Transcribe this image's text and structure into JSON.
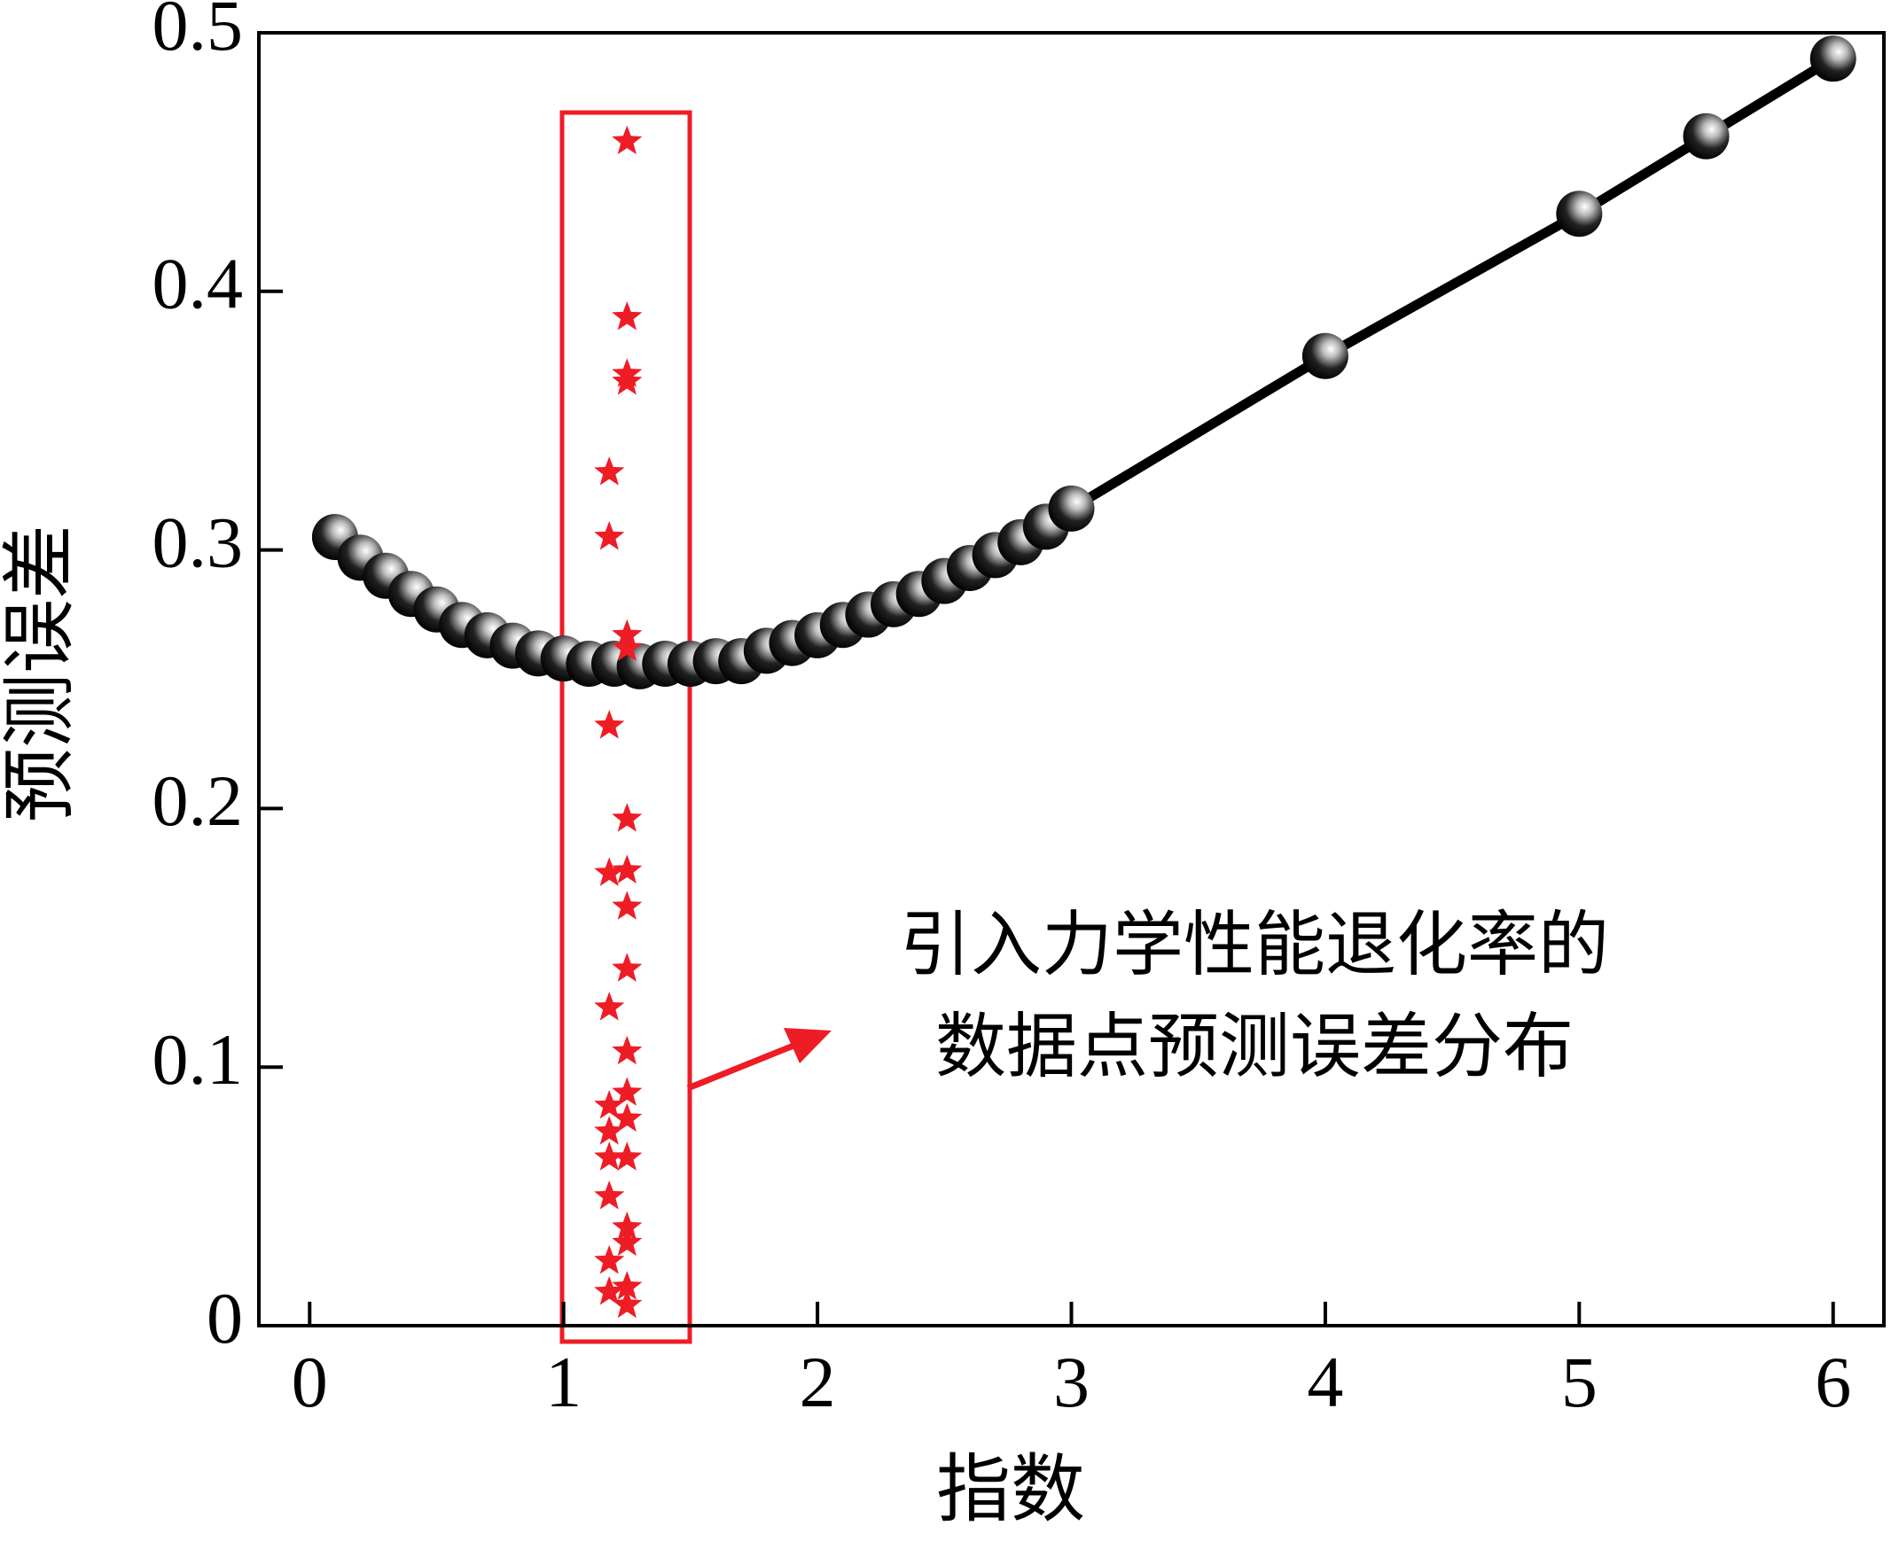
{
  "chart_data": {
    "type": "line",
    "x_label": "指数",
    "y_label": "预测误差",
    "annotation": [
      "引入力学性能退化率的",
      "数据点预测误差分布"
    ],
    "xlim": [
      -0.2,
      6.2
    ],
    "ylim": [
      0,
      0.5
    ],
    "xticks": [
      0,
      1,
      2,
      3,
      4,
      5,
      6
    ],
    "yticks": [
      0,
      0.1,
      0.2,
      0.3,
      0.4,
      0.5
    ],
    "series": [
      {
        "type": "line",
        "color": "#000000",
        "x": [
          0.1,
          0.2,
          0.3,
          0.4,
          0.5,
          0.6,
          0.7,
          0.8,
          0.9,
          1.0,
          1.1,
          1.2,
          1.3,
          1.4,
          1.5,
          1.6,
          1.7,
          1.8,
          1.9,
          2.0,
          2.1,
          2.2,
          2.3,
          2.4,
          2.5,
          2.6,
          2.7,
          2.8,
          2.9,
          3.0,
          4,
          5,
          5.5,
          6
        ],
        "values": [
          0.305,
          0.297,
          0.29,
          0.283,
          0.277,
          0.271,
          0.267,
          0.263,
          0.26,
          0.258,
          0.256,
          0.256,
          0.255,
          0.256,
          0.256,
          0.257,
          0.257,
          0.261,
          0.264,
          0.267,
          0.271,
          0.275,
          0.279,
          0.283,
          0.288,
          0.293,
          0.298,
          0.303,
          0.309,
          0.316,
          0.375,
          0.43,
          0.46,
          0.49
        ]
      },
      {
        "type": "scatter",
        "color": "#ee1c25",
        "x": [
          1.18,
          1.18,
          1.18,
          1.18,
          1.18,
          1.18,
          1.18,
          1.18,
          1.18,
          1.18,
          1.18,
          1.25,
          1.25,
          1.25,
          1.25,
          1.25,
          1.25,
          1.25,
          1.25,
          1.25,
          1.25,
          1.25,
          1.25,
          1.25,
          1.25,
          1.25,
          1.25,
          1.25,
          1.25
        ],
        "values": [
          0.33,
          0.305,
          0.232,
          0.175,
          0.123,
          0.085,
          0.075,
          0.065,
          0.05,
          0.025,
          0.013,
          0.458,
          0.39,
          0.368,
          0.365,
          0.267,
          0.262,
          0.196,
          0.176,
          0.162,
          0.138,
          0.106,
          0.09,
          0.08,
          0.065,
          0.038,
          0.032,
          0.015,
          0.008
        ]
      }
    ]
  }
}
